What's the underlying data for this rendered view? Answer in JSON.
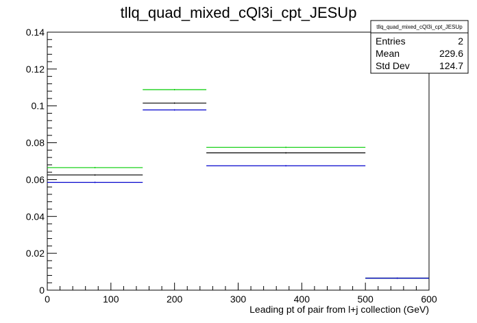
{
  "chart_data": {
    "type": "step",
    "title": "tllq_quad_mixed_cQl3i_cpt_JESUp",
    "xlabel": "Leading pt of pair from l+j collection (GeV)",
    "ylabel": "",
    "xlim": [
      0,
      600
    ],
    "ylim": [
      0,
      0.14
    ],
    "x_ticks": [
      "0",
      "100",
      "200",
      "300",
      "400",
      "500",
      "600"
    ],
    "y_ticks": [
      "0",
      "0.02",
      "0.04",
      "0.06",
      "0.08",
      "0.1",
      "0.12",
      "0.14"
    ],
    "bin_edges": [
      0,
      150,
      250,
      500,
      600
    ],
    "series": [
      {
        "color": "#00cc00",
        "values": [
          0.0665,
          0.1088,
          0.0775,
          0.0065
        ]
      },
      {
        "color": "#000000",
        "values": [
          0.0625,
          0.1015,
          0.0745,
          0.0065
        ]
      },
      {
        "color": "#0000cc",
        "values": [
          0.0585,
          0.0978,
          0.0675,
          0.0065
        ]
      }
    ],
    "stats_box": {
      "title": "tllq_quad_mixed_cQl3i_cpt_JESUp",
      "rows": [
        {
          "label": "Entries",
          "value": "2"
        },
        {
          "label": "Mean",
          "value": "229.6"
        },
        {
          "label": "Std Dev",
          "value": "124.7"
        }
      ]
    }
  }
}
